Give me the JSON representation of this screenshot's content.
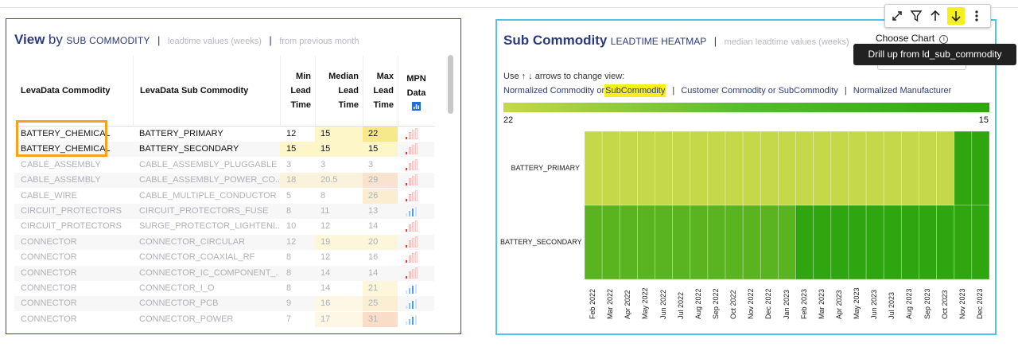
{
  "left_panel": {
    "title": "View",
    "by": "by",
    "dimension": "SUB COMMODITY",
    "sep": "|",
    "subtitle": "leadtime values (weeks)",
    "subtitle2": "from previous month",
    "columns": [
      "LevaData Commodity",
      "LevaData Sub Commodity",
      "Min Lead Time",
      "Median Lead Time",
      "Max Lead Time",
      "MPN Data"
    ],
    "rows": [
      {
        "commodity": "BATTERY_CHEMICAL",
        "sub": "BATTERY_PRIMARY",
        "min": "12",
        "median": "15",
        "max": "22",
        "bright": true,
        "minbg": "#ffffff",
        "medbg": "#fdf6c8",
        "maxbg": "#f6e98a",
        "mpn": "red"
      },
      {
        "commodity": "BATTERY_CHEMICAL",
        "sub": "BATTERY_SECONDARY",
        "min": "15",
        "median": "15",
        "max": "15",
        "bright": true,
        "minbg": "#fdf6c8",
        "medbg": "#fdf6c8",
        "maxbg": "#fdf6c8",
        "mpn": "red"
      },
      {
        "commodity": "CABLE_ASSEMBLY",
        "sub": "CABLE_ASSEMBLY_PLUGGABLE",
        "min": "3",
        "median": "3",
        "max": "3",
        "bright": false,
        "minbg": "",
        "medbg": "",
        "maxbg": "",
        "mpn": "red"
      },
      {
        "commodity": "CABLE_ASSEMBLY",
        "sub": "CABLE_ASSEMBLY_POWER_CO...",
        "min": "18",
        "median": "20.5",
        "max": "29",
        "bright": false,
        "minbg": "#fbf2dc",
        "medbg": "#fbf2dc",
        "maxbg": "#f9e3cf",
        "mpn": "red"
      },
      {
        "commodity": "CABLE_WIRE",
        "sub": "CABLE_MULTIPLE_CONDUCTOR",
        "min": "5",
        "median": "8",
        "max": "26",
        "bright": false,
        "minbg": "",
        "medbg": "",
        "maxbg": "#fbeed0",
        "mpn": "red"
      },
      {
        "commodity": "CIRCUIT_PROTECTORS",
        "sub": "CIRCUIT_PROTECTORS_FUSE",
        "min": "8",
        "median": "11",
        "max": "13",
        "bright": false,
        "minbg": "",
        "medbg": "",
        "maxbg": "",
        "mpn": "blue"
      },
      {
        "commodity": "CIRCUIT_PROTECTORS",
        "sub": "SURGE_PROTECTOR_LIGHTENI...",
        "min": "10",
        "median": "12",
        "max": "14",
        "bright": false,
        "minbg": "",
        "medbg": "",
        "maxbg": "",
        "mpn": "red"
      },
      {
        "commodity": "CONNECTOR",
        "sub": "CONNECTOR_CIRCULAR",
        "min": "12",
        "median": "19",
        "max": "20",
        "bright": false,
        "minbg": "",
        "medbg": "#fdf6da",
        "maxbg": "#fdf6da",
        "mpn": "red"
      },
      {
        "commodity": "CONNECTOR",
        "sub": "CONNECTOR_COAXIAL_RF",
        "min": "8",
        "median": "12",
        "max": "16",
        "bright": false,
        "minbg": "",
        "medbg": "",
        "maxbg": "",
        "mpn": "red"
      },
      {
        "commodity": "CONNECTOR",
        "sub": "CONNECTOR_IC_COMPONENT_...",
        "min": "8",
        "median": "14",
        "max": "14",
        "bright": false,
        "minbg": "",
        "medbg": "",
        "maxbg": "",
        "mpn": "red"
      },
      {
        "commodity": "CONNECTOR",
        "sub": "CONNECTOR_I_O",
        "min": "8",
        "median": "14",
        "max": "21",
        "bright": false,
        "minbg": "",
        "medbg": "",
        "maxbg": "#fdf6da",
        "mpn": "blue"
      },
      {
        "commodity": "CONNECTOR",
        "sub": "CONNECTOR_PCB",
        "min": "9",
        "median": "16",
        "max": "25",
        "bright": false,
        "minbg": "",
        "medbg": "#fdf8e6",
        "maxbg": "#fbefd3",
        "mpn": "blue"
      },
      {
        "commodity": "CONNECTOR",
        "sub": "CONNECTOR_POWER",
        "min": "7",
        "median": "17",
        "max": "31",
        "bright": false,
        "minbg": "",
        "medbg": "#fdf8e6",
        "maxbg": "#f9ddc8",
        "mpn": "blue"
      }
    ]
  },
  "right_panel": {
    "title": "Sub Commodity",
    "subtitle": "LEADTIME HEATMAP",
    "sep": "|",
    "subtitle2": "median leadtime values (weeks)",
    "choose_chart": "Choose Chart",
    "info_icon": "info-icon",
    "use_text": "Use ↑ ↓ arrows to change view:",
    "views": [
      "Normalized Commodity or",
      "SubCommodity",
      "Customer Commodity or SubCommodity",
      "Normalized Manufacturer"
    ],
    "views_sep": "|",
    "scale_left": "22",
    "scale_right": "15"
  },
  "chart_data": {
    "type": "heatmap",
    "title": "Sub Commodity",
    "subtitle": "LEADTIME HEATMAP | median leadtime values (weeks)",
    "color_scale": {
      "min_label": "22",
      "max_label": "15",
      "colors": [
        "#c5d84a",
        "#2fa60f"
      ]
    },
    "rows": [
      "BATTERY_PRIMARY",
      "BATTERY_SECONDARY"
    ],
    "columns": [
      "Feb 2022",
      "Mar 2022",
      "Apr 2022",
      "May 2022",
      "Jun 2022",
      "Jul 2022",
      "Aug 2022",
      "Sep 2022",
      "Oct 2022",
      "Nov 2022",
      "Dec 2022",
      "Jan 2023",
      "Feb 2023",
      "Mar 2023",
      "Apr 2023",
      "May 2023",
      "Jun 2023",
      "Jul 2023",
      "Aug 2023",
      "Sep 2023",
      "Oct 2023",
      "Nov 2023",
      "Dec 2023"
    ],
    "values": [
      [
        22,
        22,
        22,
        22,
        22,
        22,
        22,
        22,
        22,
        22,
        22,
        22,
        22,
        22,
        22,
        22,
        22,
        22,
        22,
        22,
        22,
        15,
        15
      ],
      [
        17,
        17,
        17,
        17,
        17,
        17,
        17,
        17,
        17,
        17,
        17,
        17,
        15,
        15,
        15,
        15,
        15,
        15,
        15,
        15,
        15,
        15,
        15
      ]
    ]
  },
  "toolbar": {
    "icons": [
      "expand-icon",
      "filter-icon",
      "arrow-up-icon",
      "arrow-down-icon",
      "more-icon"
    ],
    "tooltip": "Drill up from ld_sub_commodity"
  }
}
